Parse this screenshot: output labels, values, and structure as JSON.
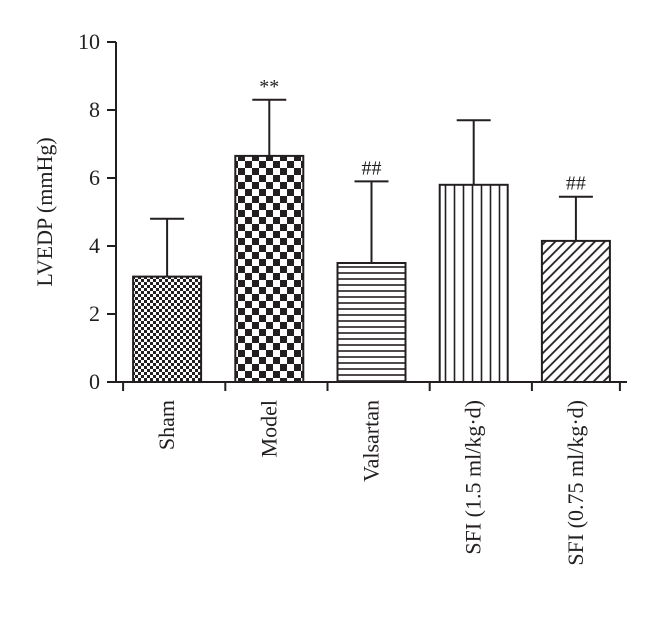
{
  "chart_data": {
    "type": "bar",
    "ylabel": "LVEDP (mmHg)",
    "ylim": [
      0,
      10
    ],
    "yticks": [
      "0",
      "2",
      "4",
      "6",
      "8",
      "10"
    ],
    "categories": [
      "Sham",
      "Model",
      "Valsartan",
      "SFI (1.5 ml/kg·d)",
      "SFI (0.75 ml/kg·d)"
    ],
    "values": [
      3.1,
      6.65,
      3.5,
      5.8,
      4.15
    ],
    "errors": [
      1.7,
      1.65,
      2.4,
      1.9,
      1.3
    ],
    "annotations": [
      "",
      "**",
      "##",
      "",
      "##"
    ],
    "patterns": [
      "fine-checker",
      "large-checker",
      "horizontal-lines",
      "vertical-lines",
      "diagonal-lines"
    ],
    "grid": false,
    "colors": {
      "ink": "#231f20",
      "background": "#ffffff"
    }
  }
}
